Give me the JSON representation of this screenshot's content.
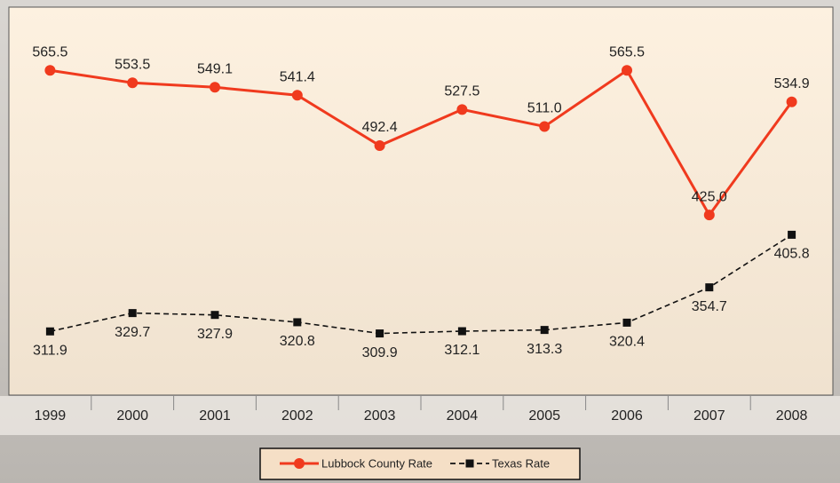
{
  "chart_data": {
    "type": "line",
    "categories": [
      "1999",
      "2000",
      "2001",
      "2002",
      "2003",
      "2004",
      "2005",
      "2006",
      "2007",
      "2008"
    ],
    "series": [
      {
        "name": "Lubbock County Rate",
        "color": "#f03a1e",
        "line_style": "solid",
        "marker": "circle",
        "values": [
          565.5,
          553.5,
          549.1,
          541.4,
          492.4,
          527.5,
          511.0,
          565.5,
          425.0,
          534.9
        ],
        "value_labels": [
          "565.5",
          "553.5",
          "549.1",
          "541.4",
          "492.4",
          "527.5",
          "511.0",
          "565.5",
          "425.0",
          "534.9"
        ]
      },
      {
        "name": "Texas Rate",
        "color": "#111111",
        "line_style": "dashed",
        "marker": "square",
        "values": [
          311.9,
          329.7,
          327.9,
          320.8,
          309.9,
          312.1,
          313.3,
          320.4,
          354.7,
          405.8
        ]
      }
    ],
    "ylim": [
      250,
      627
    ],
    "grid": false,
    "legend": "bottom"
  }
}
